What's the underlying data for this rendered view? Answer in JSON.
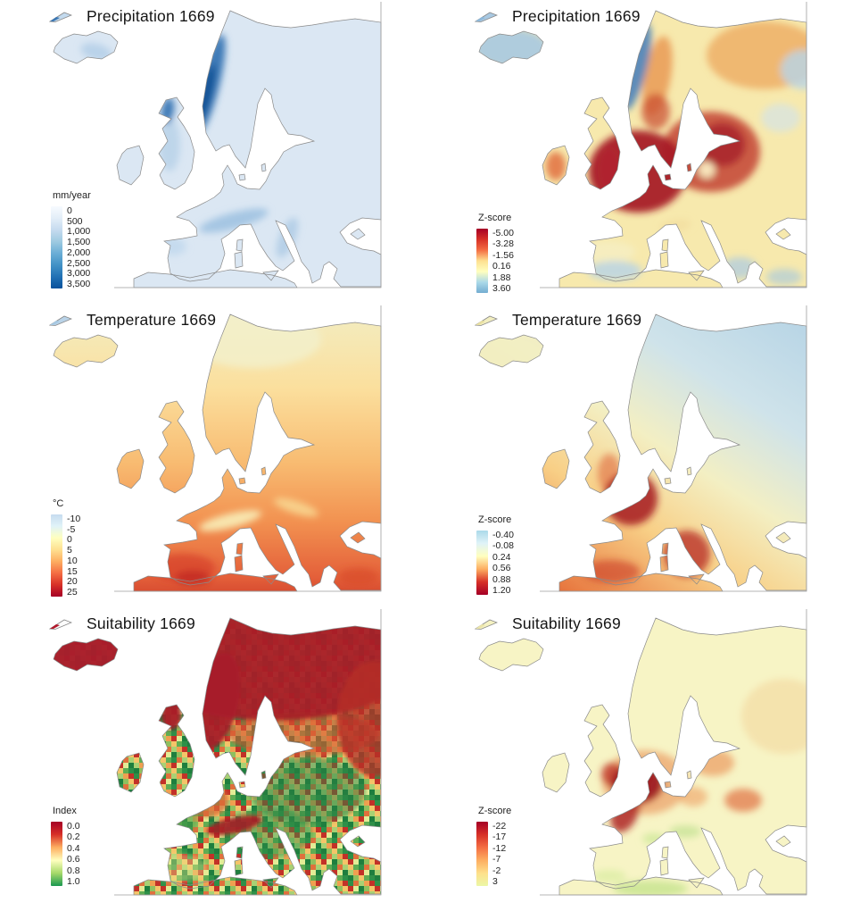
{
  "figure": {
    "background": "#ffffff",
    "coastline_color": "#8a8a8a",
    "frame_color": "#9e9e9e",
    "text_color": "#1a1a1a"
  },
  "panels": [
    {
      "title": "Precipitation 1669",
      "icon": {
        "name": "map-fragment-icon",
        "fill": "#c3daee",
        "tip": "#3c77b3"
      },
      "legend": {
        "title": "mm/year",
        "ticks": [
          "0",
          "500",
          "1,000",
          "1,500",
          "2,000",
          "2,500",
          "3,000",
          "3,500"
        ],
        "ramp": [
          "#f7fbff",
          "#e3eef8",
          "#c6dbef",
          "#9ecae1",
          "#6baed6",
          "#4292c6",
          "#2171b5",
          "#08519c"
        ]
      },
      "map": {
        "base": "#dbe7f3",
        "blobs": {
          "gb_west": "#aac9e5",
          "alps": "#93bbdd",
          "balkan_coast": "#a5c6e2",
          "iberia_nw": "#bcd6ec",
          "iceland_se": "#b1cde7",
          "norway_coast": "#2f6eb0",
          "norway_core": "#0a4d92",
          "scotland": "#2f6eb0"
        }
      }
    },
    {
      "title": "Precipitation 1669",
      "icon": {
        "name": "map-fragment-icon",
        "fill": "#a9c9e2",
        "tip": "#8db8da"
      },
      "legend": {
        "title": "Z-score",
        "ticks": [
          "-5.00",
          "-3.28",
          "-1.56",
          "0.16",
          "1.88",
          "3.60"
        ],
        "ramp": [
          "#a50026",
          "#d73027",
          "#f46d43",
          "#fee090",
          "#ffffbf",
          "#abd9e9",
          "#74add1"
        ]
      },
      "map": {
        "base": "#f7e9ad",
        "blobs": {
          "ne_orange": "#eca75e",
          "ne_blue1": "#b8d4e9",
          "ne_blue2": "#cfe2f0",
          "east_red": "#bf3a2b",
          "east_core": "#a8242a",
          "west_europe_dark": "#a81d29",
          "england": "#b02430",
          "ireland": "#e2703f",
          "norway_inland_orange": "#e8954f",
          "scandi_red": "#c94a30",
          "norway_coast_blue": "#4c82ba",
          "iceland": "#a7c9e2",
          "iberia_pale": "#f6eec2",
          "iberia_blue": "#b5d3e8",
          "balkans_blue": "#a9cbe4",
          "turkey_blue": "#a2c6e1",
          "baltic_pale": "#fdf4c9",
          "alps_south_pale": "#f2dd9e"
        }
      }
    },
    {
      "title": "Temperature 1669",
      "icon": {
        "name": "map-fragment-icon",
        "fill": "#b9d3e8",
        "tip": "#a6c8e2"
      },
      "legend": {
        "title": "°C",
        "ticks": [
          "-10",
          "-5",
          "0",
          "5",
          "10",
          "15",
          "20",
          "25"
        ],
        "ramp": [
          "#c6dbef",
          "#e0f3f8",
          "#ffffbf",
          "#fee090",
          "#fdae61",
          "#f46d43",
          "#d73027",
          "#a50026"
        ]
      },
      "map": {
        "gradient": [
          "#f2eec4",
          "#fbdf9d",
          "#f8bc72",
          "#f29150",
          "#e4603a",
          "#cc3a28"
        ],
        "blobs": {
          "scandi_pale": "#f3f0cc",
          "alps_pale": "#f8eeb8",
          "carpathians_pale": "#f9dc96",
          "iberia_dark": "#d6402a",
          "south_spain": "#c22a20",
          "turkey_dark": "#d84b2b"
        }
      }
    },
    {
      "title": "Temperature 1669",
      "icon": {
        "name": "map-fragment-icon",
        "fill": "#f2eec0",
        "tip": "#e8dfa0"
      },
      "legend": {
        "title": "Z-score",
        "ticks": [
          "-0.40",
          "-0.08",
          "0.24",
          "0.56",
          "0.88",
          "1.20"
        ],
        "ramp": [
          "#abd9e9",
          "#e0f3f8",
          "#ffffbf",
          "#fdae61",
          "#d73027",
          "#a50026"
        ]
      },
      "map": {
        "gradient": [
          "#aecfe4",
          "#cfe3ea",
          "#f3efc3",
          "#f8cf86",
          "#e87a41",
          "#bc2325"
        ],
        "blobs": {
          "gb_orange": "#e0683c",
          "spain_orange": "#ca3d25",
          "italy_dark": "#b01d20",
          "france_dark": "#a5161f",
          "iceland_pale": "#f2eec2"
        }
      }
    },
    {
      "title": "Suitability 1669",
      "icon": {
        "name": "map-fragment-icon",
        "fill": "#fdfdfd",
        "tip": "#b2182b"
      },
      "legend": {
        "title": "Index",
        "ticks": [
          "0.0",
          "0.2",
          "0.4",
          "0.6",
          "0.8",
          "1.0"
        ],
        "ramp": [
          "#a50026",
          "#d73027",
          "#fdae61",
          "#ffffbf",
          "#a6d96a",
          "#1a9850"
        ]
      },
      "map": {
        "speckle": [
          "#1e7e3e",
          "#5fad53",
          "#a8d174",
          "#e3ec96",
          "#f5c469",
          "#e0703c",
          "#c23128",
          "#8fc05e",
          "#2e9048",
          "#f0a050"
        ],
        "blobs": {
          "east_green": "#27803f",
          "central_green": "#2e8b47",
          "wfrance_green": "#57a14b",
          "iberia_yellow": "#e6e78c",
          "transition_orange": "#d6582f",
          "france_orange": "#da6a35",
          "north_red": "#a81d29",
          "norway_red": "#a81d29",
          "ne_red": "#b52f28",
          "scotland_red": "#a81d29",
          "alps_red": "#a41c26",
          "iceland_red": "#a81d29"
        }
      }
    },
    {
      "title": "Suitability 1669",
      "icon": {
        "name": "map-fragment-icon",
        "fill": "#f5f2c2",
        "tip": "#ebe4a8"
      },
      "legend": {
        "title": "Z-score",
        "ticks": [
          "-22",
          "-17",
          "-12",
          "-7",
          "-2",
          "3"
        ],
        "ramp": [
          "#a50026",
          "#d73027",
          "#f46d43",
          "#fdae61",
          "#fee08b",
          "#ecf7a6"
        ]
      },
      "map": {
        "base": "#f7f4c5",
        "blobs": {
          "ne_tan": "#f3dca4",
          "east_orange1": "#eb9a5f",
          "east_orange2": "#e2784a",
          "east_orange3": "#ef9f62",
          "denmark_orange": "#e98c55",
          "orange_halo": "#ea9055",
          "england_red": "#c0392b",
          "dark_red2": "#ae2623",
          "dark_red": "#9e1a22",
          "po_green": "#cde69c",
          "sfrance_green": "#d3ea9f",
          "africa_green": "#cbe593",
          "spain_green": "#d8ed9f"
        }
      }
    }
  ]
}
